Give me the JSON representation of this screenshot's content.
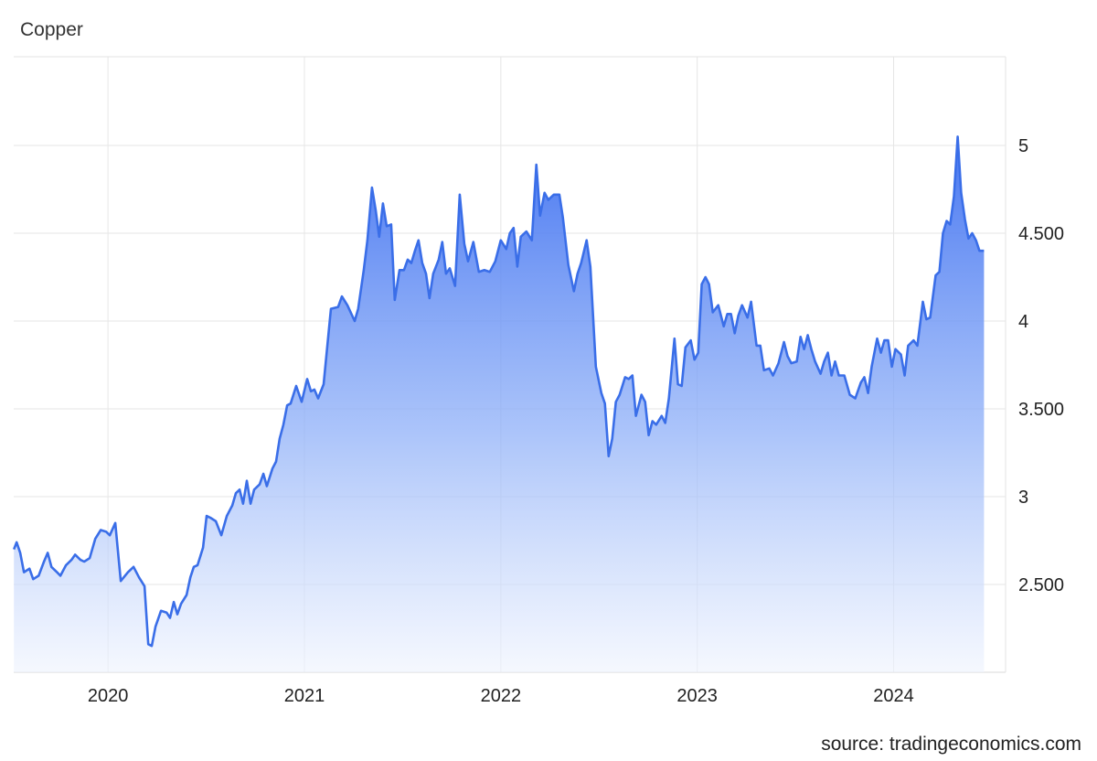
{
  "chart_data": {
    "type": "line",
    "title": "Copper",
    "source": "source: tradingeconomics.com",
    "color": "#3a6ee8",
    "grid": true,
    "xlim": [
      2019.52,
      2024.57
    ],
    "xticks": [
      2020,
      2021,
      2022,
      2023,
      2024
    ],
    "ylim": [
      2,
      5.5
    ],
    "yticks": [
      {
        "value": 2.5,
        "label": "2.500"
      },
      3,
      {
        "value": 3.5,
        "label": "3.500"
      },
      4,
      {
        "value": 4.5,
        "label": "4.500"
      },
      5
    ],
    "x": [
      2019.521,
      2019.535,
      2019.553,
      2019.572,
      2019.6,
      2019.619,
      2019.647,
      2019.674,
      2019.693,
      2019.712,
      2019.74,
      2019.758,
      2019.786,
      2019.814,
      2019.833,
      2019.86,
      2019.879,
      2019.907,
      2019.935,
      2019.963,
      2019.991,
      2020.009,
      2020.037,
      2020.065,
      2020.102,
      2020.13,
      2020.158,
      2020.186,
      2020.205,
      2020.223,
      2020.242,
      2020.27,
      2020.298,
      2020.316,
      2020.335,
      2020.353,
      2020.372,
      2020.4,
      2020.419,
      2020.437,
      2020.456,
      2020.484,
      2020.502,
      2020.521,
      2020.549,
      2020.577,
      2020.605,
      2020.633,
      2020.651,
      2020.67,
      2020.688,
      2020.707,
      2020.726,
      2020.744,
      2020.772,
      2020.791,
      2020.809,
      2020.837,
      2020.856,
      2020.874,
      2020.893,
      2020.912,
      2020.93,
      2020.958,
      2020.986,
      2021.014,
      2021.033,
      2021.051,
      2021.07,
      2021.098,
      2021.116,
      2021.135,
      2021.172,
      2021.191,
      2021.219,
      2021.256,
      2021.274,
      2021.302,
      2021.321,
      2021.344,
      2021.363,
      2021.381,
      2021.4,
      2021.419,
      2021.442,
      2021.46,
      2021.484,
      2021.507,
      2021.526,
      2021.544,
      2021.563,
      2021.581,
      2021.6,
      2021.619,
      2021.637,
      2021.656,
      2021.684,
      2021.702,
      2021.721,
      2021.74,
      2021.767,
      2021.791,
      2021.814,
      2021.833,
      2021.86,
      2021.888,
      2021.916,
      2021.944,
      2021.972,
      2022.0,
      2022.028,
      2022.046,
      2022.065,
      2022.084,
      2022.102,
      2022.13,
      2022.158,
      2022.181,
      2022.2,
      2022.223,
      2022.242,
      2022.27,
      2022.298,
      2022.316,
      2022.344,
      2022.372,
      2022.391,
      2022.409,
      2022.437,
      2022.456,
      2022.484,
      2022.512,
      2022.53,
      2022.549,
      2022.567,
      2022.586,
      2022.605,
      2022.633,
      2022.651,
      2022.67,
      2022.688,
      2022.716,
      2022.735,
      2022.753,
      2022.772,
      2022.791,
      2022.819,
      2022.837,
      2022.856,
      2022.884,
      2022.902,
      2022.921,
      2022.94,
      2022.967,
      2022.986,
      2023.005,
      2023.023,
      2023.042,
      2023.06,
      2023.079,
      2023.107,
      2023.135,
      2023.153,
      2023.172,
      2023.191,
      2023.209,
      2023.228,
      2023.256,
      2023.274,
      2023.302,
      2023.321,
      2023.34,
      2023.367,
      2023.386,
      2023.414,
      2023.442,
      2023.46,
      2023.479,
      2023.507,
      2023.526,
      2023.544,
      2023.563,
      2023.581,
      2023.6,
      2023.628,
      2023.646,
      2023.665,
      2023.684,
      2023.702,
      2023.721,
      2023.749,
      2023.777,
      2023.805,
      2023.833,
      2023.851,
      2023.87,
      2023.888,
      2023.916,
      2023.935,
      2023.953,
      2023.972,
      2023.991,
      2024.009,
      2024.037,
      2024.056,
      2024.074,
      2024.102,
      2024.121,
      2024.149,
      2024.167,
      2024.186,
      2024.214,
      2024.233,
      2024.251,
      2024.27,
      2024.288,
      2024.307,
      2024.326,
      2024.344,
      2024.363,
      2024.381,
      2024.4,
      2024.419,
      2024.437,
      2024.46
    ],
    "values": [
      2.7,
      2.74,
      2.68,
      2.57,
      2.59,
      2.53,
      2.55,
      2.63,
      2.68,
      2.6,
      2.57,
      2.55,
      2.61,
      2.64,
      2.67,
      2.64,
      2.63,
      2.65,
      2.76,
      2.81,
      2.8,
      2.78,
      2.85,
      2.52,
      2.57,
      2.6,
      2.54,
      2.49,
      2.16,
      2.15,
      2.26,
      2.35,
      2.34,
      2.31,
      2.4,
      2.33,
      2.39,
      2.44,
      2.54,
      2.6,
      2.61,
      2.71,
      2.89,
      2.88,
      2.86,
      2.78,
      2.89,
      2.95,
      3.02,
      3.04,
      2.96,
      3.09,
      2.96,
      3.04,
      3.07,
      3.13,
      3.06,
      3.16,
      3.2,
      3.33,
      3.41,
      3.52,
      3.53,
      3.63,
      3.54,
      3.67,
      3.6,
      3.61,
      3.56,
      3.64,
      3.85,
      4.07,
      4.08,
      4.14,
      4.09,
      4.0,
      4.07,
      4.29,
      4.46,
      4.76,
      4.63,
      4.48,
      4.67,
      4.54,
      4.55,
      4.12,
      4.29,
      4.29,
      4.35,
      4.33,
      4.4,
      4.46,
      4.33,
      4.27,
      4.13,
      4.27,
      4.35,
      4.45,
      4.27,
      4.3,
      4.2,
      4.72,
      4.44,
      4.34,
      4.45,
      4.28,
      4.29,
      4.28,
      4.34,
      4.46,
      4.41,
      4.5,
      4.53,
      4.31,
      4.48,
      4.51,
      4.46,
      4.89,
      4.6,
      4.73,
      4.69,
      4.72,
      4.72,
      4.59,
      4.32,
      4.17,
      4.27,
      4.33,
      4.46,
      4.31,
      3.74,
      3.59,
      3.53,
      3.23,
      3.33,
      3.54,
      3.58,
      3.68,
      3.67,
      3.69,
      3.46,
      3.58,
      3.54,
      3.35,
      3.43,
      3.41,
      3.46,
      3.42,
      3.56,
      3.9,
      3.64,
      3.63,
      3.85,
      3.89,
      3.78,
      3.82,
      4.21,
      4.25,
      4.21,
      4.05,
      4.09,
      3.97,
      4.04,
      4.04,
      3.93,
      4.03,
      4.09,
      4.02,
      4.11,
      3.86,
      3.86,
      3.72,
      3.73,
      3.69,
      3.76,
      3.88,
      3.8,
      3.76,
      3.77,
      3.91,
      3.84,
      3.92,
      3.84,
      3.77,
      3.7,
      3.77,
      3.82,
      3.69,
      3.77,
      3.69,
      3.69,
      3.58,
      3.56,
      3.65,
      3.68,
      3.59,
      3.74,
      3.9,
      3.82,
      3.89,
      3.89,
      3.74,
      3.84,
      3.81,
      3.69,
      3.86,
      3.89,
      3.86,
      4.11,
      4.01,
      4.02,
      4.26,
      4.28,
      4.5,
      4.57,
      4.55,
      4.71,
      5.05,
      4.73,
      4.58,
      4.47,
      4.5,
      4.46,
      4.4,
      4.4
    ]
  }
}
